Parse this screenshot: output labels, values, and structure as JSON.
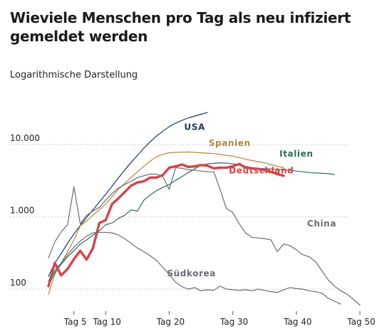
{
  "title": "Wieviele Menschen pro Tag als neu infiziert gemeldet werden",
  "subtitle": "Logarithmische Darstellung",
  "chart_data": {
    "type": "line",
    "yscale": "log",
    "xlim": [
      1,
      50
    ],
    "ylim": [
      80,
      30000
    ],
    "grid": "horizontal dotted",
    "x_ticks": [
      {
        "value": 5,
        "label": "Tag 5"
      },
      {
        "value": 10,
        "label": "Tag 10"
      },
      {
        "value": 20,
        "label": "Tag 20"
      },
      {
        "value": 30,
        "label": "Tag 30"
      },
      {
        "value": 40,
        "label": "Tag 40"
      },
      {
        "value": 50,
        "label": "Tag 50"
      }
    ],
    "y_ticks": [
      {
        "value": 100,
        "label": "100"
      },
      {
        "value": 1000,
        "label": "1.000"
      },
      {
        "value": 10000,
        "label": "10.000"
      }
    ],
    "series": [
      {
        "name": "USA",
        "color": "#1f3a66",
        "width": 1.2,
        "label_at": [
          24,
          16000
        ],
        "x": [
          1,
          2,
          3,
          4,
          5,
          6,
          7,
          8,
          9,
          10,
          11,
          12,
          13,
          14,
          15,
          16,
          17,
          18,
          19,
          20,
          21,
          22,
          23,
          24,
          25,
          26
        ],
        "y": [
          150,
          230,
          310,
          430,
          580,
          760,
          980,
          1250,
          1600,
          2050,
          2650,
          3450,
          4450,
          5650,
          7100,
          8900,
          10900,
          13100,
          15300,
          17700,
          19800,
          21600,
          23400,
          24800,
          26200,
          27800
        ]
      },
      {
        "name": "Spanien",
        "color": "#b08a3e",
        "width": 1.2,
        "label_at": [
          29.5,
          9600
        ],
        "x": [
          1,
          2,
          3,
          4,
          5,
          6,
          7,
          8,
          9,
          10,
          11,
          12,
          13,
          14,
          15,
          16,
          17,
          18,
          19,
          20,
          21,
          22,
          23,
          24,
          25,
          26,
          27,
          28,
          29,
          30,
          31,
          32,
          33,
          34,
          35,
          36,
          37,
          38
        ],
        "y": [
          85,
          160,
          230,
          330,
          480,
          750,
          880,
          1050,
          1250,
          1500,
          1900,
          2400,
          2900,
          3500,
          4200,
          5000,
          5900,
          6800,
          7300,
          7700,
          7800,
          7850,
          7900,
          7800,
          7700,
          7600,
          7500,
          7300,
          7100,
          6900,
          6600,
          6300,
          6000,
          5800,
          5600,
          5300,
          5000,
          4800
        ]
      },
      {
        "name": "Italien",
        "color": "#2e6b5a",
        "width": 1.2,
        "label_at": [
          40,
          6800
        ],
        "x": [
          1,
          2,
          3,
          4,
          5,
          6,
          7,
          8,
          9,
          10,
          11,
          12,
          13,
          14,
          15,
          16,
          17,
          18,
          19,
          20,
          21,
          22,
          23,
          24,
          25,
          26,
          27,
          28,
          29,
          30,
          31,
          32,
          33,
          34,
          35,
          36,
          37,
          38,
          39,
          40,
          41,
          42,
          43,
          44,
          45,
          46
        ],
        "y": [
          110,
          170,
          220,
          280,
          340,
          420,
          480,
          560,
          640,
          780,
          820,
          950,
          1050,
          1250,
          1200,
          1700,
          2000,
          2300,
          2550,
          2800,
          3200,
          3600,
          4100,
          4600,
          5200,
          5400,
          5500,
          5600,
          5550,
          5400,
          5300,
          5000,
          4800,
          4700,
          4650,
          4600,
          4500,
          4450,
          4400,
          4300,
          4200,
          4100,
          4050,
          4000,
          3950,
          3850
        ]
      },
      {
        "name": "Deutschland",
        "color": "#d8434a",
        "width": 3.4,
        "label_at": [
          34.5,
          4000
        ],
        "x": [
          1,
          2,
          3,
          4,
          5,
          6,
          7,
          8,
          9,
          10,
          11,
          12,
          13,
          14,
          15,
          16,
          17,
          18,
          19,
          20,
          21,
          22,
          23,
          24,
          25,
          26,
          27,
          28,
          29,
          30,
          31,
          32,
          33,
          34,
          35,
          36,
          37,
          38
        ],
        "y": [
          110,
          230,
          155,
          190,
          260,
          340,
          255,
          370,
          820,
          900,
          1500,
          1800,
          2200,
          2700,
          3000,
          3100,
          3500,
          3500,
          3800,
          4800,
          5000,
          5300,
          4900,
          5000,
          5200,
          5100,
          4700,
          4800,
          4800,
          5000,
          5400,
          4800,
          4700,
          4600,
          4400,
          4200,
          3900,
          3700
        ]
      },
      {
        "name": "China",
        "color": "#6b6b75",
        "width": 1.2,
        "label_at": [
          44,
          740
        ],
        "x": [
          1,
          2,
          3,
          4,
          5,
          6,
          7,
          8,
          9,
          10,
          11,
          12,
          13,
          14,
          15,
          16,
          17,
          18,
          19,
          20,
          21,
          22,
          23,
          24,
          25,
          26,
          27,
          28,
          29,
          30,
          31,
          32,
          33,
          34,
          35,
          36,
          37,
          38,
          39,
          40,
          41,
          42,
          43,
          44,
          45,
          46,
          47,
          48,
          49,
          50
        ],
        "y": [
          270,
          450,
          620,
          780,
          2600,
          800,
          1050,
          1200,
          1350,
          1700,
          2100,
          2500,
          2800,
          3100,
          3500,
          3700,
          3900,
          3900,
          3600,
          2400,
          4800,
          4700,
          4500,
          4400,
          4300,
          4200,
          4200,
          2400,
          1300,
          1150,
          800,
          600,
          520,
          510,
          500,
          480,
          330,
          420,
          400,
          350,
          300,
          280,
          240,
          180,
          135,
          110,
          95,
          85,
          72,
          60
        ]
      },
      {
        "name": "Südkorea",
        "color": "#6b6b75",
        "width": 1.2,
        "label_at": [
          23.5,
          150
        ],
        "x": [
          1,
          2,
          3,
          4,
          5,
          6,
          7,
          8,
          9,
          10,
          11,
          12,
          13,
          14,
          15,
          16,
          17,
          18,
          19,
          20,
          21,
          22,
          23,
          24,
          25,
          26,
          27,
          28,
          29,
          30,
          31,
          32,
          33,
          34,
          35,
          36,
          37,
          38,
          39,
          40,
          41,
          42,
          43,
          44,
          45,
          46,
          47
        ],
        "y": [
          130,
          180,
          230,
          300,
          380,
          460,
          540,
          600,
          610,
          610,
          600,
          560,
          500,
          430,
          370,
          330,
          290,
          250,
          200,
          160,
          125,
          108,
          100,
          105,
          95,
          98,
          96,
          110,
          100,
          98,
          96,
          98,
          95,
          100,
          96,
          92,
          90,
          98,
          105,
          102,
          100,
          95,
          92,
          88,
          75,
          68,
          62
        ]
      }
    ]
  }
}
